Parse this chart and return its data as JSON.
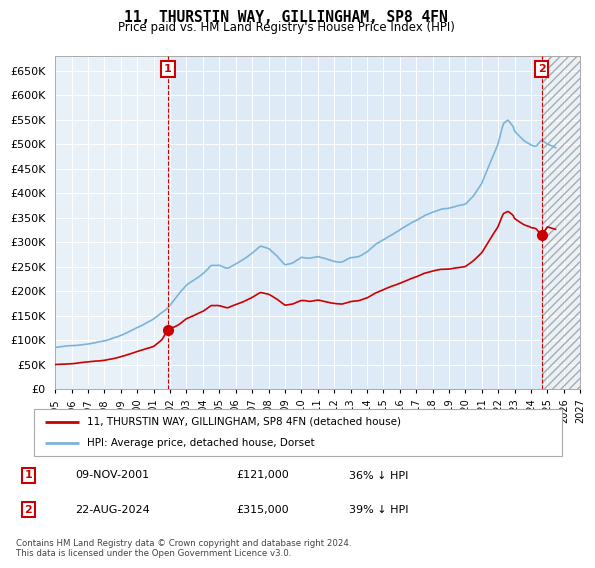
{
  "title": "11, THURSTIN WAY, GILLINGHAM, SP8 4FN",
  "subtitle": "Price paid vs. HM Land Registry's House Price Index (HPI)",
  "legend_line1": "11, THURSTIN WAY, GILLINGHAM, SP8 4FN (detached house)",
  "legend_line2": "HPI: Average price, detached house, Dorset",
  "annotation1_date": "09-NOV-2001",
  "annotation1_price": "£121,000",
  "annotation1_hpi": "36% ↓ HPI",
  "annotation2_date": "22-AUG-2024",
  "annotation2_price": "£315,000",
  "annotation2_hpi": "39% ↓ HPI",
  "footnote": "Contains HM Land Registry data © Crown copyright and database right 2024.\nThis data is licensed under the Open Government Licence v3.0.",
  "hpi_color": "#7ab5d8",
  "price_color": "#cc0000",
  "vline_color": "#cc0000",
  "annotation_box_color": "#cc0000",
  "bg_color": "#ddeeff",
  "ylim": [
    0,
    680000
  ],
  "yticks": [
    0,
    50000,
    100000,
    150000,
    200000,
    250000,
    300000,
    350000,
    400000,
    450000,
    500000,
    550000,
    600000,
    650000
  ],
  "sale1_x": 2001.87,
  "sale1_y": 121000,
  "sale2_x": 2024.65,
  "sale2_y": 315000,
  "xmin": 1995,
  "xmax": 2027,
  "xtick_years": [
    1995,
    1996,
    1997,
    1998,
    1999,
    2000,
    2001,
    2002,
    2003,
    2004,
    2005,
    2006,
    2007,
    2008,
    2009,
    2010,
    2011,
    2012,
    2013,
    2014,
    2015,
    2016,
    2017,
    2018,
    2019,
    2020,
    2021,
    2022,
    2023,
    2024,
    2025,
    2026,
    2027
  ]
}
